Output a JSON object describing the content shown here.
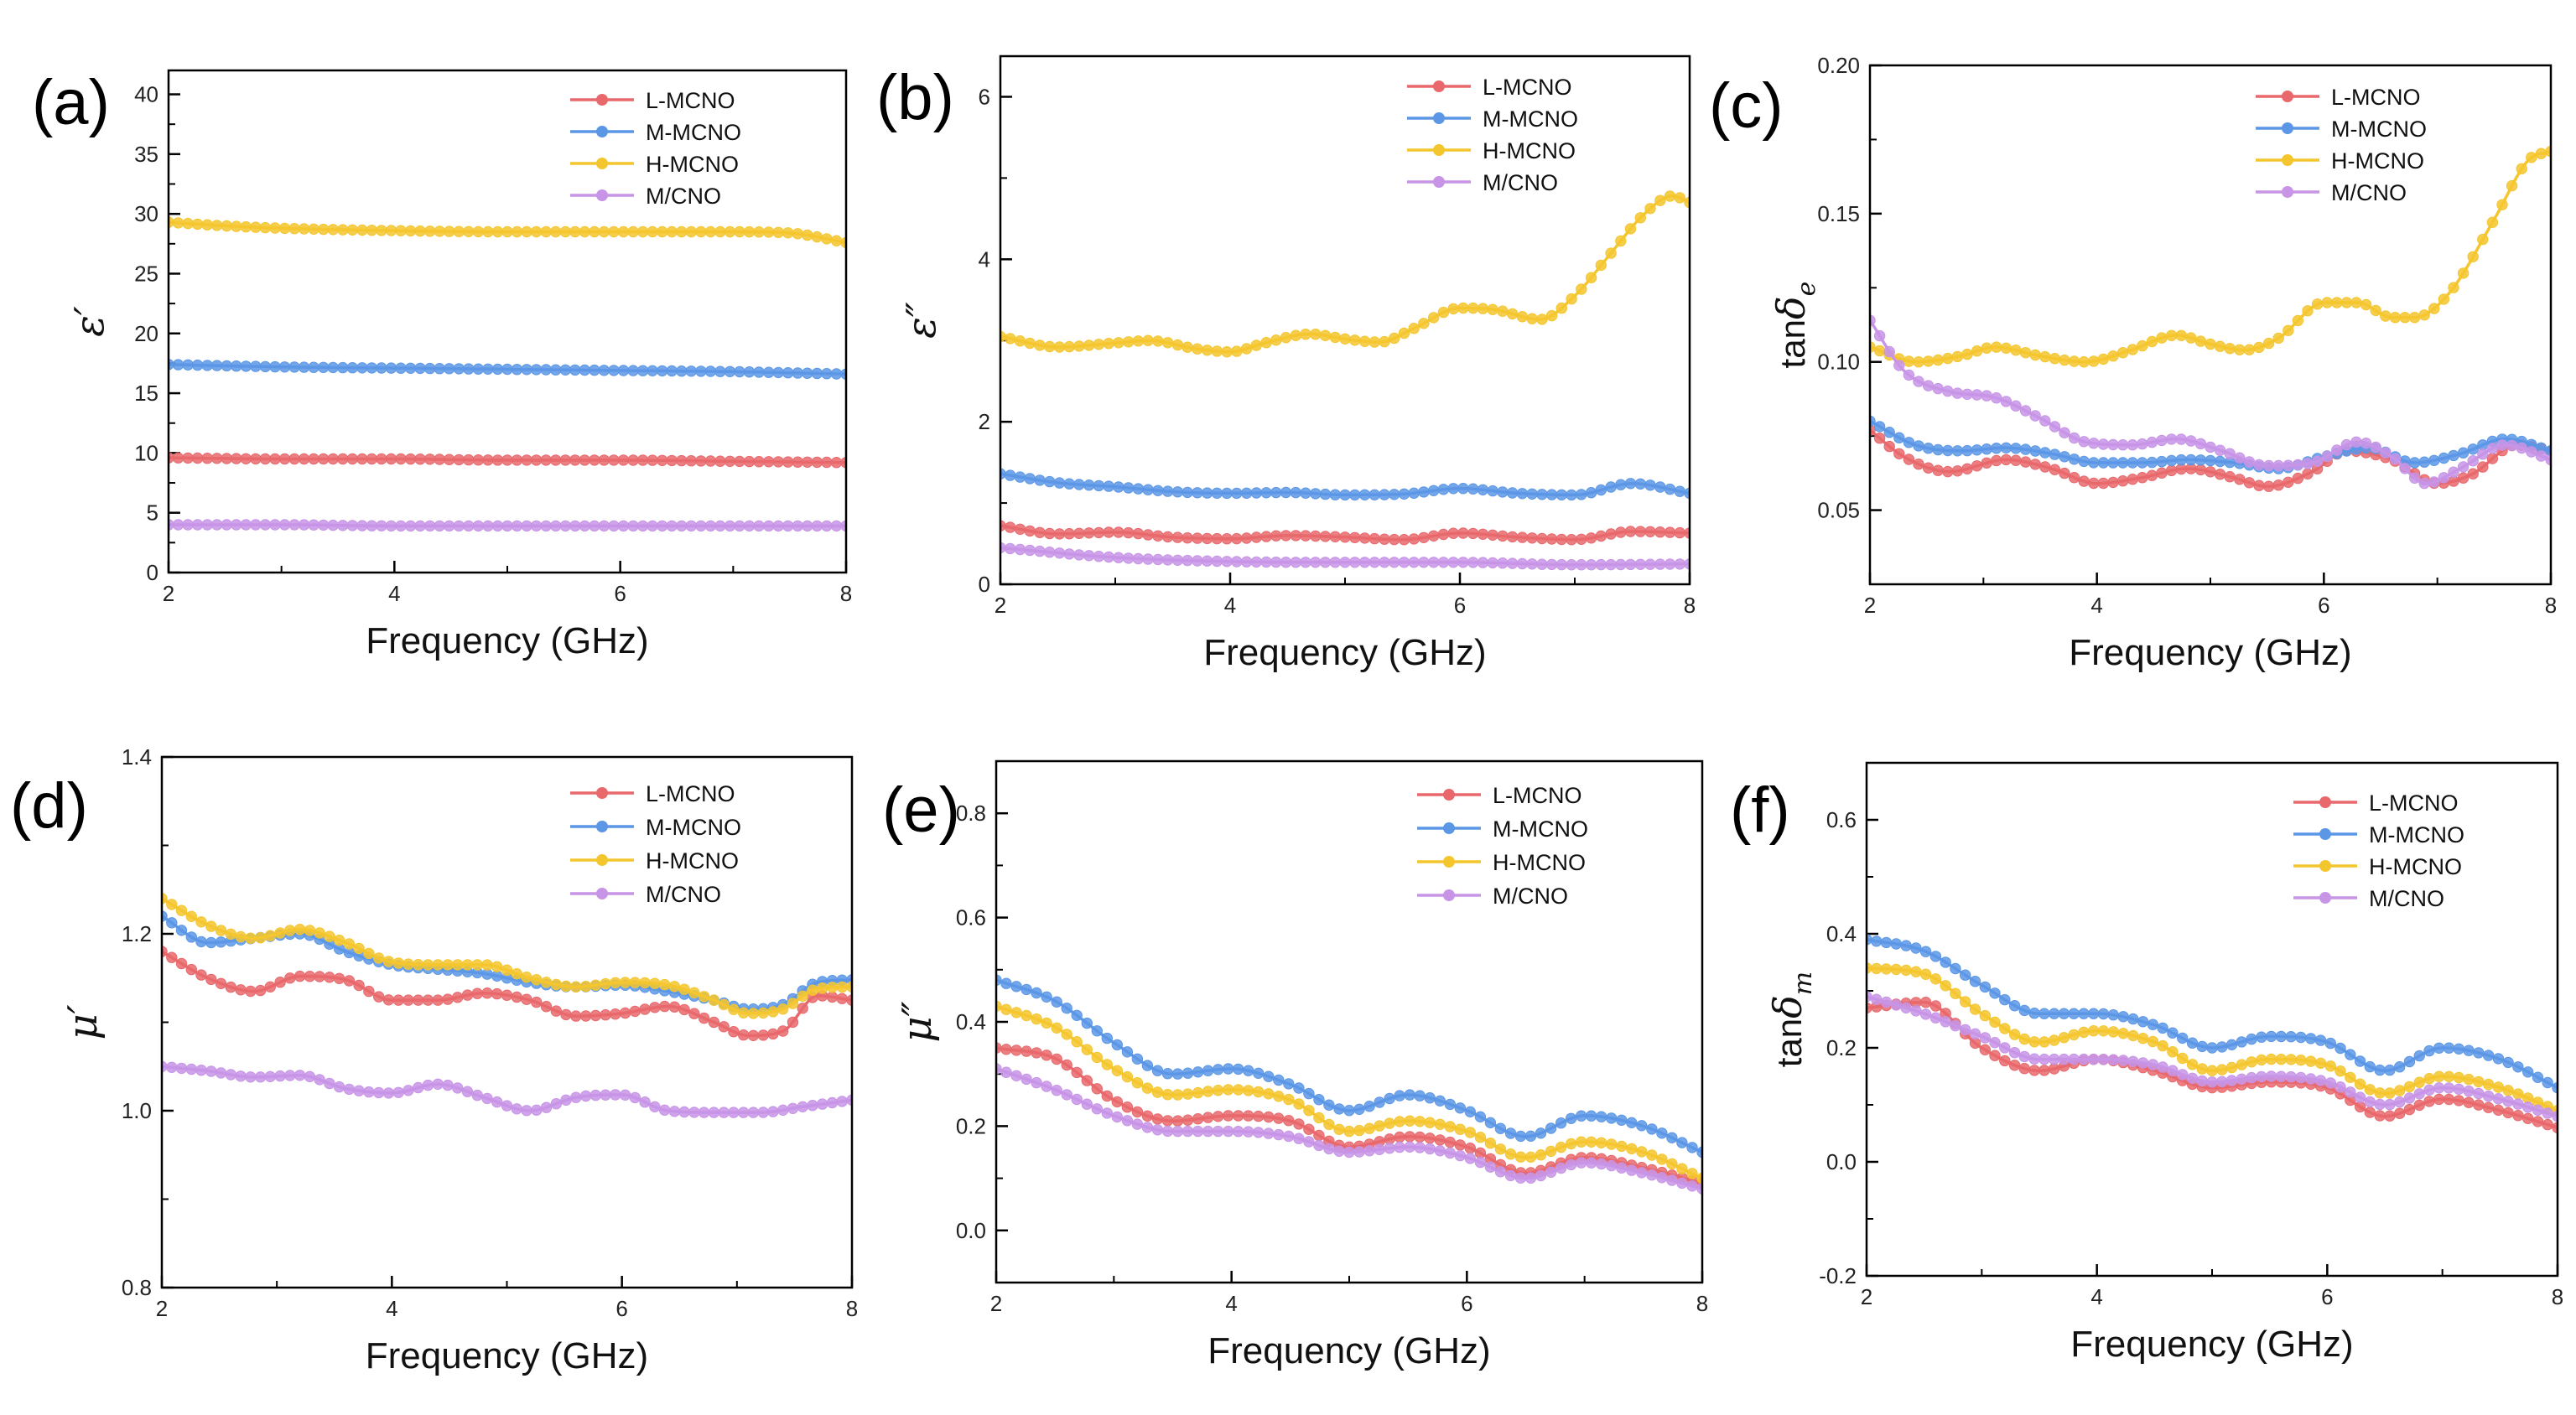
{
  "colors": {
    "L-MCNO": "#e8686c",
    "M-MCNO": "#5c97e6",
    "H-MCNO": "#f4c62e",
    "M/CNO": "#c794e6"
  },
  "chart_data": [
    {
      "panel": "(a)",
      "type": "line",
      "xlabel": "Frequency (GHz)",
      "ylabel": "ε′",
      "xlim": [
        2,
        8
      ],
      "ylim": [
        0,
        42
      ],
      "xticks": [
        2,
        4,
        6,
        8
      ],
      "yticks": [
        0,
        5,
        10,
        15,
        20,
        25,
        30,
        35,
        40
      ],
      "legend": [
        "L-MCNO",
        "M-MCNO",
        "H-MCNO",
        "M/CNO"
      ],
      "series": [
        {
          "name": "L-MCNO",
          "x": [
            2,
            3,
            4,
            5,
            6,
            7,
            8
          ],
          "y": [
            9.6,
            9.5,
            9.5,
            9.4,
            9.4,
            9.3,
            9.2
          ]
        },
        {
          "name": "M-MCNO",
          "x": [
            2,
            3,
            4,
            5,
            6,
            7,
            8
          ],
          "y": [
            17.4,
            17.2,
            17.1,
            17.0,
            16.9,
            16.8,
            16.6
          ]
        },
        {
          "name": "H-MCNO",
          "x": [
            2,
            2.5,
            3,
            4,
            5,
            6,
            7,
            7.5,
            8
          ],
          "y": [
            29.3,
            29.0,
            28.8,
            28.6,
            28.5,
            28.5,
            28.5,
            28.4,
            27.6
          ]
        },
        {
          "name": "M/CNO",
          "x": [
            2,
            3,
            4,
            5,
            6,
            7,
            8
          ],
          "y": [
            4.0,
            4.0,
            3.9,
            3.9,
            3.9,
            3.9,
            3.9
          ]
        }
      ]
    },
    {
      "panel": "(b)",
      "type": "line",
      "xlabel": "Frequency (GHz)",
      "ylabel": "ε″",
      "xlim": [
        2,
        8
      ],
      "ylim": [
        0,
        6.5
      ],
      "xticks": [
        2,
        4,
        6,
        8
      ],
      "yticks": [
        0,
        2,
        4,
        6
      ],
      "legend": [
        "L-MCNO",
        "M-MCNO",
        "H-MCNO",
        "M/CNO"
      ],
      "series": [
        {
          "name": "L-MCNO",
          "x": [
            2,
            2.5,
            3,
            3.5,
            4,
            4.5,
            5,
            5.5,
            6,
            6.5,
            7,
            7.5,
            8
          ],
          "y": [
            0.72,
            0.62,
            0.64,
            0.58,
            0.56,
            0.6,
            0.58,
            0.55,
            0.63,
            0.58,
            0.55,
            0.65,
            0.63
          ]
        },
        {
          "name": "M-MCNO",
          "x": [
            2,
            2.5,
            3,
            3.5,
            4,
            4.5,
            5,
            5.5,
            6,
            6.5,
            7,
            7.5,
            8
          ],
          "y": [
            1.36,
            1.25,
            1.2,
            1.14,
            1.12,
            1.13,
            1.1,
            1.11,
            1.18,
            1.12,
            1.1,
            1.24,
            1.12
          ]
        },
        {
          "name": "H-MCNO",
          "x": [
            2,
            2.5,
            3,
            3.3,
            3.7,
            4,
            4.3,
            4.7,
            5,
            5.3,
            5.6,
            6,
            6.3,
            6.7,
            7,
            7.3,
            7.6,
            7.85,
            8
          ],
          "y": [
            3.05,
            2.92,
            2.97,
            3.0,
            2.9,
            2.86,
            2.97,
            3.08,
            3.02,
            2.98,
            3.15,
            3.4,
            3.38,
            3.26,
            3.55,
            4.05,
            4.55,
            4.78,
            4.7
          ]
        },
        {
          "name": "M/CNO",
          "x": [
            2,
            3,
            4,
            5,
            6,
            7,
            8
          ],
          "y": [
            0.45,
            0.33,
            0.28,
            0.27,
            0.27,
            0.24,
            0.25
          ]
        }
      ]
    },
    {
      "panel": "(c)",
      "type": "line",
      "xlabel": "Frequency (GHz)",
      "ylabel": "tanδe",
      "xlim": [
        2,
        8
      ],
      "ylim": [
        0.025,
        0.2
      ],
      "xticks": [
        2,
        4,
        6,
        8
      ],
      "yticks": [
        0.05,
        0.1,
        0.15,
        0.2
      ],
      "legend": [
        "L-MCNO",
        "M-MCNO",
        "H-MCNO",
        "M/CNO"
      ],
      "series": [
        {
          "name": "L-MCNO",
          "x": [
            2,
            2.3,
            2.7,
            3.2,
            3.6,
            4,
            4.4,
            4.8,
            5.2,
            5.5,
            5.9,
            6.2,
            6.6,
            7,
            7.3,
            7.7,
            8
          ],
          "y": [
            0.077,
            0.068,
            0.063,
            0.067,
            0.064,
            0.059,
            0.061,
            0.064,
            0.061,
            0.058,
            0.063,
            0.07,
            0.067,
            0.059,
            0.062,
            0.072,
            0.07
          ]
        },
        {
          "name": "M-MCNO",
          "x": [
            2,
            2.4,
            2.8,
            3.2,
            3.6,
            4,
            4.4,
            4.8,
            5.2,
            5.6,
            6,
            6.4,
            6.8,
            7.2,
            7.6,
            8
          ],
          "y": [
            0.08,
            0.072,
            0.07,
            0.071,
            0.069,
            0.066,
            0.066,
            0.067,
            0.066,
            0.064,
            0.068,
            0.071,
            0.066,
            0.069,
            0.074,
            0.07
          ]
        },
        {
          "name": "H-MCNO",
          "x": [
            2,
            2.4,
            2.8,
            3.1,
            3.5,
            3.9,
            4.3,
            4.7,
            5,
            5.3,
            5.6,
            6,
            6.3,
            6.6,
            6.8,
            7.1,
            7.5,
            7.8,
            8
          ],
          "y": [
            0.105,
            0.1,
            0.102,
            0.105,
            0.102,
            0.1,
            0.104,
            0.109,
            0.106,
            0.104,
            0.108,
            0.12,
            0.12,
            0.115,
            0.115,
            0.123,
            0.148,
            0.168,
            0.171
          ]
        },
        {
          "name": "M/CNO",
          "x": [
            2,
            2.3,
            2.7,
            3.1,
            3.5,
            3.9,
            4.3,
            4.7,
            5.1,
            5.5,
            5.9,
            6.3,
            6.6,
            6.9,
            7.2,
            7.6,
            8
          ],
          "y": [
            0.114,
            0.097,
            0.09,
            0.088,
            0.081,
            0.073,
            0.072,
            0.074,
            0.07,
            0.065,
            0.066,
            0.073,
            0.068,
            0.059,
            0.064,
            0.072,
            0.067
          ]
        }
      ]
    },
    {
      "panel": "(d)",
      "type": "line",
      "xlabel": "Frequency (GHz)",
      "ylabel": "μ′",
      "xlim": [
        2,
        8
      ],
      "ylim": [
        0.8,
        1.4
      ],
      "xticks": [
        2,
        4,
        6,
        8
      ],
      "yticks": [
        0.8,
        1.0,
        1.2,
        1.4
      ],
      "legend": [
        "L-MCNO",
        "M-MCNO",
        "H-MCNO",
        "M/CNO"
      ],
      "series": [
        {
          "name": "L-MCNO",
          "x": [
            2,
            2.4,
            2.8,
            3.2,
            3.6,
            4,
            4.4,
            4.8,
            5.2,
            5.6,
            6,
            6.4,
            6.8,
            7.1,
            7.4,
            7.7,
            8
          ],
          "y": [
            1.18,
            1.15,
            1.135,
            1.152,
            1.148,
            1.125,
            1.125,
            1.133,
            1.125,
            1.107,
            1.11,
            1.118,
            1.1,
            1.085,
            1.09,
            1.13,
            1.125
          ]
        },
        {
          "name": "M-MCNO",
          "x": [
            2,
            2.4,
            2.8,
            3.2,
            3.6,
            4,
            4.4,
            4.8,
            5.2,
            5.6,
            6,
            6.4,
            6.8,
            7.1,
            7.4,
            7.7,
            8
          ],
          "y": [
            1.22,
            1.19,
            1.195,
            1.2,
            1.18,
            1.165,
            1.16,
            1.155,
            1.145,
            1.14,
            1.142,
            1.135,
            1.125,
            1.115,
            1.12,
            1.145,
            1.148
          ]
        },
        {
          "name": "H-MCNO",
          "x": [
            2,
            2.4,
            2.8,
            3.2,
            3.6,
            4,
            4.4,
            4.8,
            5.2,
            5.6,
            6,
            6.4,
            6.8,
            7.1,
            7.4,
            7.7,
            8
          ],
          "y": [
            1.24,
            1.21,
            1.195,
            1.205,
            1.19,
            1.168,
            1.165,
            1.165,
            1.15,
            1.14,
            1.145,
            1.142,
            1.125,
            1.11,
            1.115,
            1.138,
            1.14
          ]
        },
        {
          "name": "M/CNO",
          "x": [
            2,
            2.4,
            2.8,
            3.2,
            3.6,
            4,
            4.4,
            4.8,
            5.2,
            5.6,
            6,
            6.4,
            6.8,
            7.2,
            7.6,
            8
          ],
          "y": [
            1.05,
            1.045,
            1.038,
            1.04,
            1.025,
            1.02,
            1.03,
            1.015,
            1.0,
            1.015,
            1.018,
            1.0,
            0.998,
            0.998,
            1.005,
            1.012
          ]
        }
      ]
    },
    {
      "panel": "(e)",
      "type": "line",
      "xlabel": "Frequency (GHz)",
      "ylabel": "μ″",
      "xlim": [
        2,
        8
      ],
      "ylim": [
        -0.1,
        0.9
      ],
      "xticks": [
        2,
        4,
        6,
        8
      ],
      "yticks": [
        0.0,
        0.2,
        0.4,
        0.6,
        0.8
      ],
      "legend": [
        "L-MCNO",
        "M-MCNO",
        "H-MCNO",
        "M/CNO"
      ],
      "series": [
        {
          "name": "L-MCNO",
          "x": [
            2,
            2.5,
            3,
            3.5,
            4,
            4.5,
            5,
            5.5,
            6,
            6.5,
            7,
            7.5,
            8
          ],
          "y": [
            0.35,
            0.33,
            0.25,
            0.21,
            0.22,
            0.21,
            0.16,
            0.18,
            0.16,
            0.11,
            0.14,
            0.12,
            0.09
          ]
        },
        {
          "name": "M-MCNO",
          "x": [
            2,
            2.5,
            3,
            3.5,
            4,
            4.5,
            5,
            5.5,
            6,
            6.5,
            7,
            7.5,
            8
          ],
          "y": [
            0.48,
            0.44,
            0.36,
            0.3,
            0.31,
            0.28,
            0.23,
            0.26,
            0.23,
            0.18,
            0.22,
            0.2,
            0.15
          ]
        },
        {
          "name": "H-MCNO",
          "x": [
            2,
            2.5,
            3,
            3.5,
            4,
            4.5,
            5,
            5.5,
            6,
            6.5,
            7,
            7.5,
            8
          ],
          "y": [
            0.43,
            0.39,
            0.31,
            0.26,
            0.27,
            0.25,
            0.19,
            0.21,
            0.19,
            0.14,
            0.17,
            0.15,
            0.1
          ]
        },
        {
          "name": "M/CNO",
          "x": [
            2,
            2.5,
            3,
            3.5,
            4,
            4.5,
            5,
            5.5,
            6,
            6.5,
            7,
            7.5,
            8
          ],
          "y": [
            0.31,
            0.27,
            0.22,
            0.19,
            0.19,
            0.18,
            0.15,
            0.16,
            0.14,
            0.1,
            0.13,
            0.11,
            0.08
          ]
        }
      ]
    },
    {
      "panel": "(f)",
      "type": "line",
      "xlabel": "Frequency (GHz)",
      "ylabel": "tanδm",
      "xlim": [
        2,
        8
      ],
      "ylim": [
        -0.2,
        0.7
      ],
      "xticks": [
        2,
        4,
        6,
        8
      ],
      "yticks": [
        -0.2,
        0.0,
        0.2,
        0.4,
        0.6
      ],
      "legend": [
        "L-MCNO",
        "M-MCNO",
        "H-MCNO",
        "M/CNO"
      ],
      "series": [
        {
          "name": "L-MCNO",
          "x": [
            2,
            2.5,
            3,
            3.5,
            4,
            4.5,
            5,
            5.5,
            6,
            6.5,
            7,
            7.5,
            8
          ],
          "y": [
            0.27,
            0.28,
            0.2,
            0.16,
            0.18,
            0.16,
            0.13,
            0.14,
            0.13,
            0.08,
            0.11,
            0.09,
            0.06
          ]
        },
        {
          "name": "M-MCNO",
          "x": [
            2,
            2.5,
            3,
            3.5,
            4,
            4.5,
            5,
            5.5,
            6,
            6.5,
            7,
            7.5,
            8
          ],
          "y": [
            0.39,
            0.37,
            0.31,
            0.26,
            0.26,
            0.24,
            0.2,
            0.22,
            0.21,
            0.16,
            0.2,
            0.18,
            0.13
          ]
        },
        {
          "name": "H-MCNO",
          "x": [
            2,
            2.5,
            3,
            3.5,
            4,
            4.5,
            5,
            5.5,
            6,
            6.5,
            7,
            7.5,
            8
          ],
          "y": [
            0.34,
            0.33,
            0.26,
            0.21,
            0.23,
            0.21,
            0.16,
            0.18,
            0.17,
            0.12,
            0.15,
            0.13,
            0.09
          ]
        },
        {
          "name": "M/CNO",
          "x": [
            2,
            2.5,
            3,
            3.5,
            4,
            4.5,
            5,
            5.5,
            6,
            6.5,
            7,
            7.5,
            8
          ],
          "y": [
            0.29,
            0.26,
            0.22,
            0.18,
            0.18,
            0.17,
            0.14,
            0.15,
            0.14,
            0.1,
            0.13,
            0.11,
            0.08
          ]
        }
      ]
    }
  ]
}
